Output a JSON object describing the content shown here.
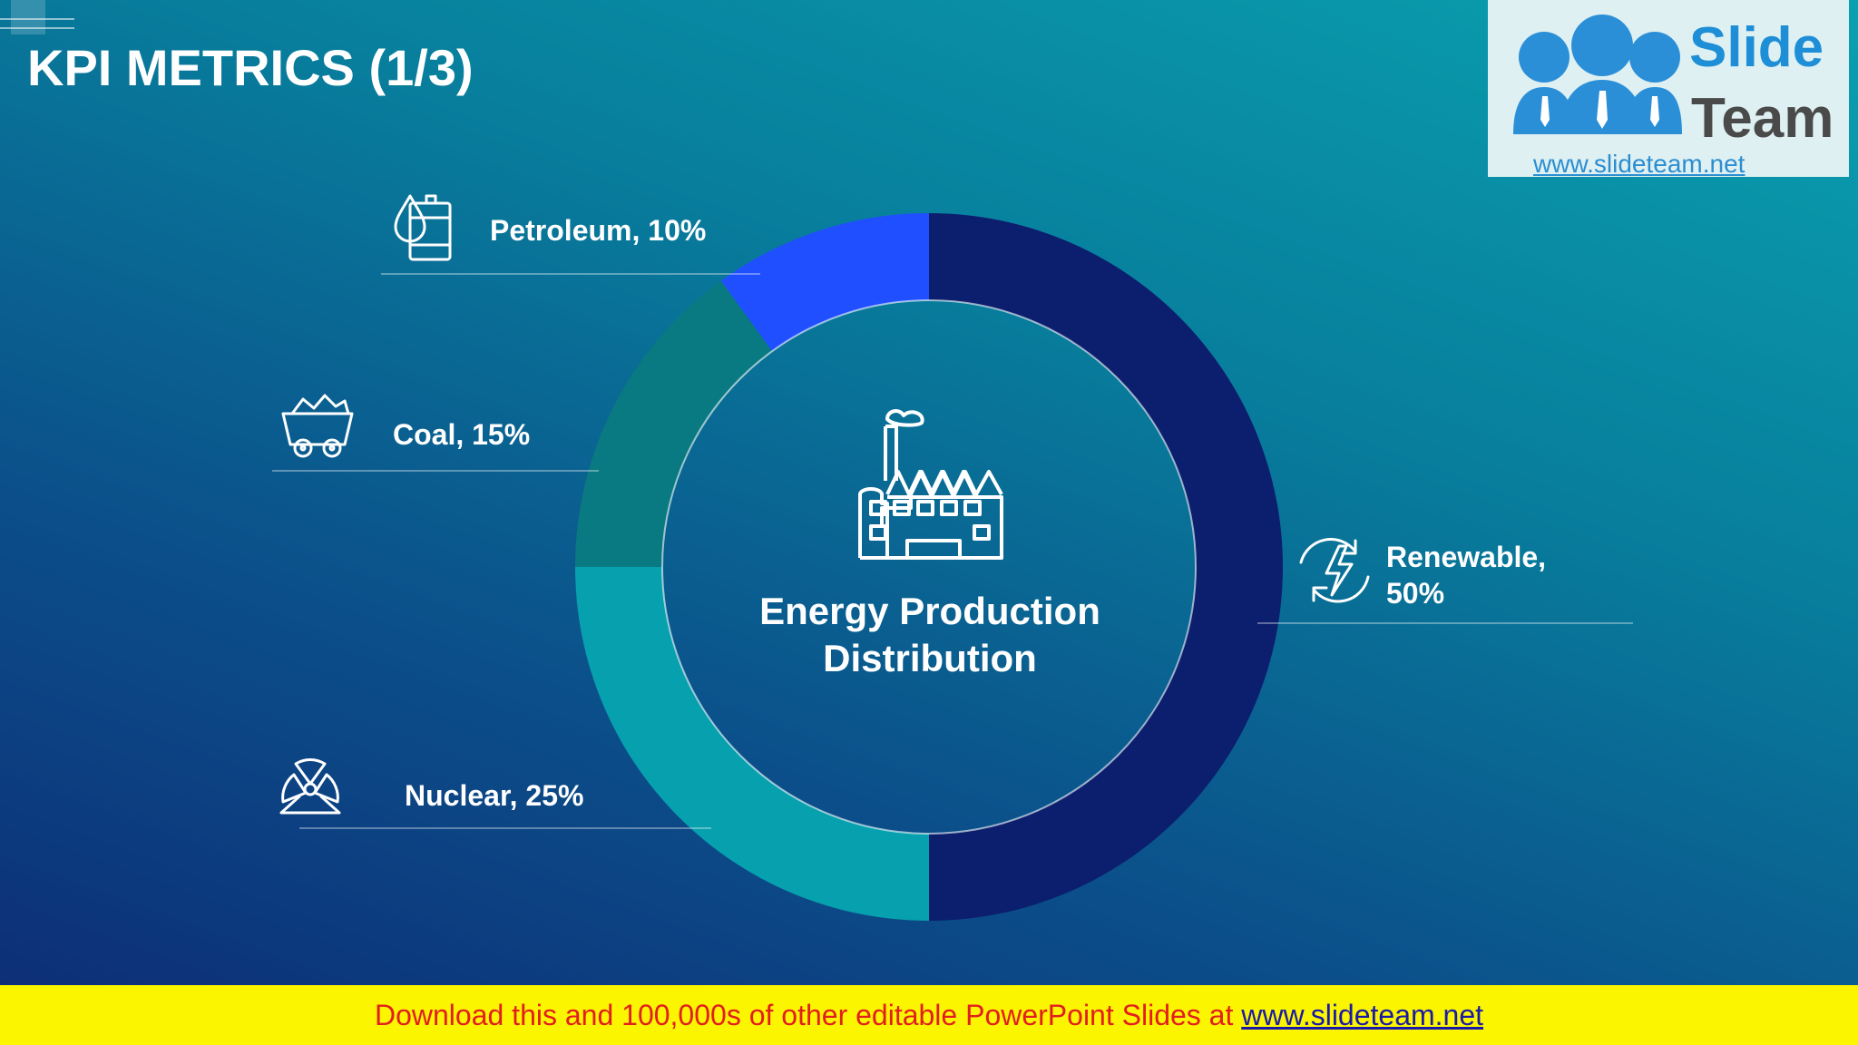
{
  "slide": {
    "title": "KPI METRICS (1/3)"
  },
  "logo": {
    "word1": "Slide",
    "word2": "Team",
    "url": "www.slideteam.net"
  },
  "chart_data": {
    "type": "pie",
    "title": "Energy Production Distribution",
    "center_lines": [
      "Energy Production",
      "Distribution"
    ],
    "series": [
      {
        "category": "Renewable",
        "value": 50,
        "label_lines": [
          "Renewable,",
          "50%"
        ],
        "icon": "renewable-energy-icon",
        "color": "#0c1e6e"
      },
      {
        "category": "Nuclear",
        "value": 25,
        "label_lines": [
          "Nuclear, 25%"
        ],
        "icon": "radiation-icon",
        "color": "#07a0ae"
      },
      {
        "category": "Coal",
        "value": 15,
        "label_lines": [
          "Coal, 15%"
        ],
        "icon": "coal-cart-icon",
        "color": "#0a7a82"
      },
      {
        "category": "Petroleum",
        "value": 10,
        "label_lines": [
          "Petroleum, 10%"
        ],
        "icon": "oil-barrel-icon",
        "color": "#1f4fff"
      }
    ],
    "center_icon": "factory-icon"
  },
  "banner": {
    "text": "Download this and 100,000s of other editable PowerPoint Slides at ",
    "link": "www.slideteam.net"
  }
}
